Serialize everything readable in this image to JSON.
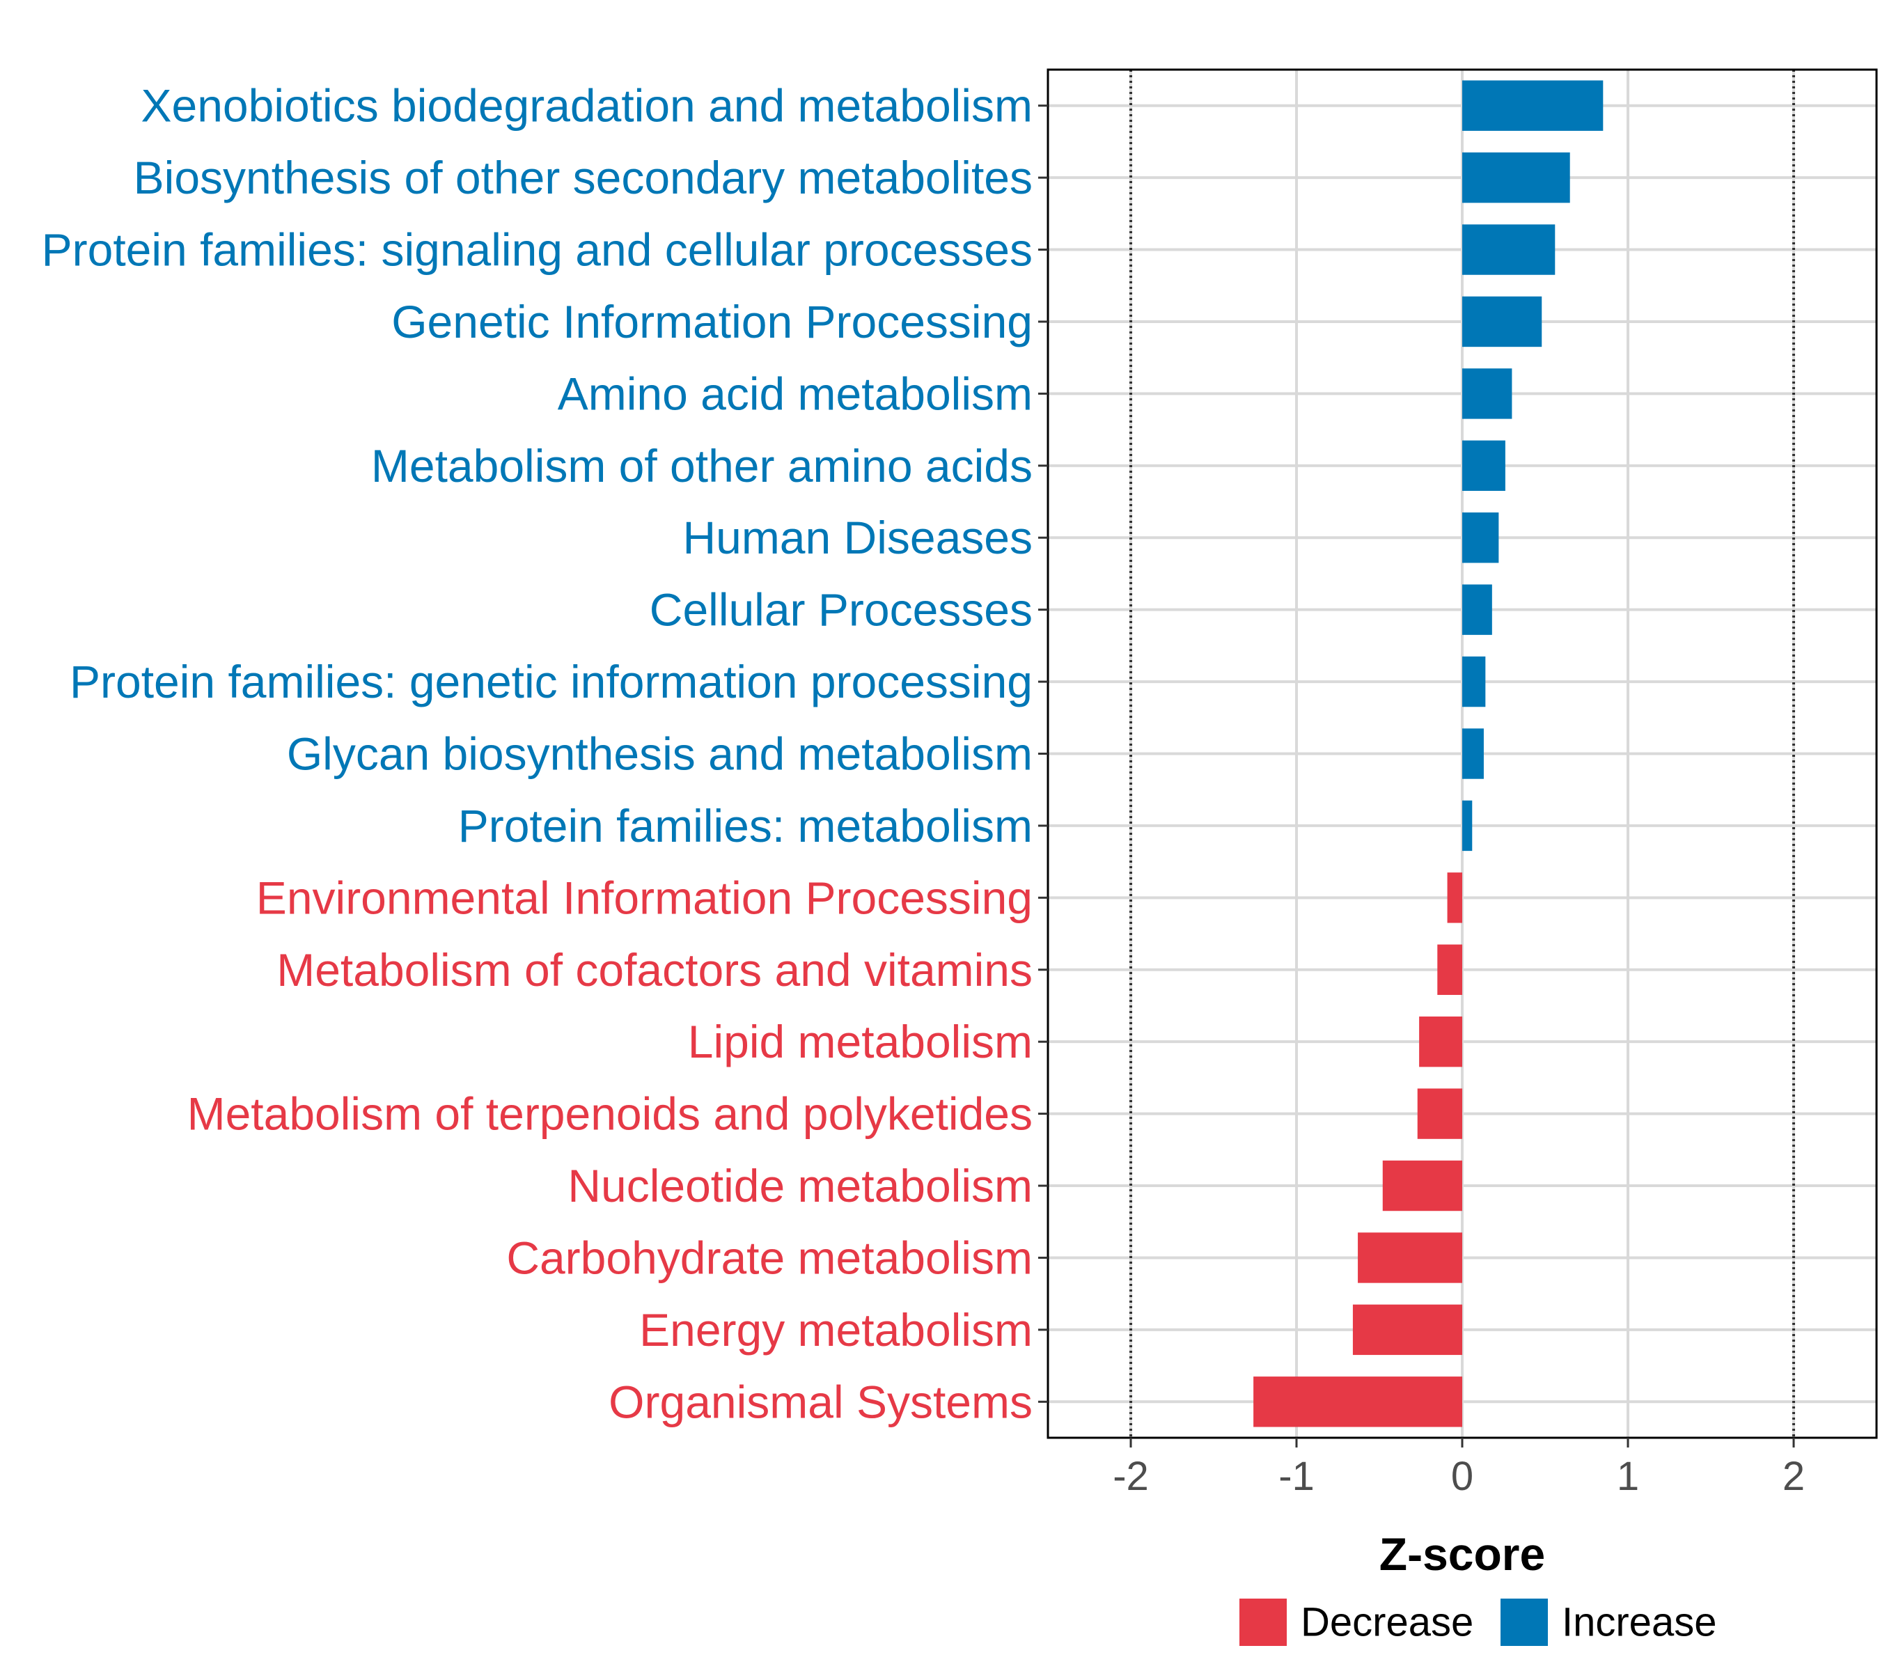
{
  "chart_data": {
    "type": "bar",
    "orientation": "horizontal",
    "xlabel": "Z-score",
    "xlim": [
      -2.5,
      2.5
    ],
    "xticks": [
      -2,
      -1,
      0,
      1,
      2
    ],
    "xtick_labels": [
      "-2",
      "-1",
      "0",
      "1",
      "2"
    ],
    "reference_lines": [
      -2,
      2
    ],
    "grid": true,
    "legend_position": "bottom",
    "legend": [
      {
        "name": "Decrease",
        "color": "#E63946"
      },
      {
        "name": "Increase",
        "color": "#0077B6"
      }
    ],
    "categories": [
      "Xenobiotics biodegradation and metabolism",
      "Biosynthesis of other secondary metabolites",
      "Protein families: signaling and cellular processes",
      "Genetic Information Processing",
      "Amino acid metabolism",
      "Metabolism of other amino acids",
      "Human Diseases",
      "Cellular Processes",
      "Protein families: genetic information processing",
      "Glycan biosynthesis and metabolism",
      "Protein families: metabolism",
      "Environmental Information Processing",
      "Metabolism of cofactors and vitamins",
      "Lipid metabolism",
      "Metabolism of terpenoids and polyketides",
      "Nucleotide metabolism",
      "Carbohydrate metabolism",
      "Energy metabolism",
      "Organismal Systems"
    ],
    "values": [
      0.85,
      0.65,
      0.56,
      0.48,
      0.3,
      0.26,
      0.22,
      0.18,
      0.14,
      0.13,
      0.06,
      -0.09,
      -0.15,
      -0.26,
      -0.27,
      -0.48,
      -0.63,
      -0.66,
      -1.26
    ]
  }
}
